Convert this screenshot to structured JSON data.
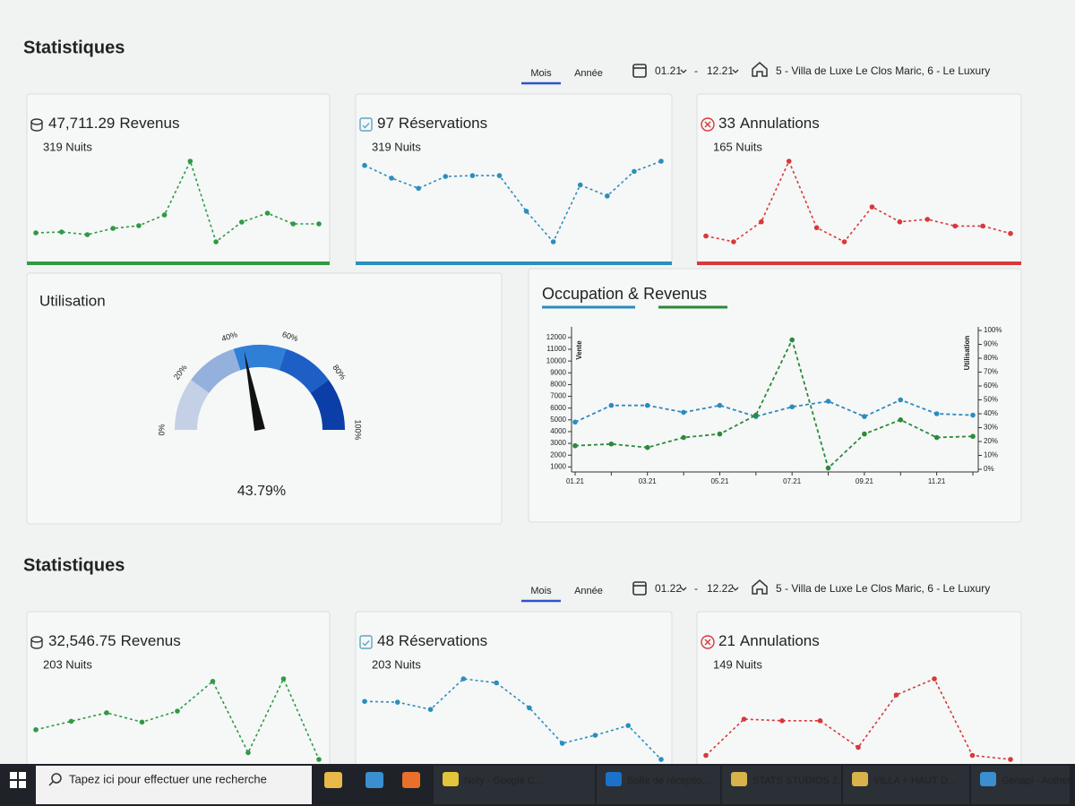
{
  "sections": [
    {
      "title": "Statistiques",
      "tabs": [
        "Mois",
        "Année"
      ],
      "date_from": "01.21",
      "date_sep": "-",
      "date_to": "12.21",
      "property": "5 - Villa de Luxe Le Clos Maric, 6 - Le Luxury",
      "cards": [
        {
          "amount": "47,711.29",
          "label": "Revenus",
          "nights": "319 Nuits",
          "color": "#2f9a44",
          "values": [
            15,
            16,
            13,
            20,
            23,
            35,
            95,
            5,
            27,
            37,
            25,
            25
          ]
        },
        {
          "amount": "97",
          "label": "Réservations",
          "nights": "319 Nuits",
          "color": "#2a8fbd",
          "values": [
            95,
            80,
            68,
            82,
            83,
            83,
            41,
            5,
            72,
            59,
            88,
            100
          ]
        },
        {
          "amount": "33",
          "label": "Annulations",
          "nights": "165 Nuits",
          "color": "#d9383a",
          "values": [
            10,
            3,
            27,
            100,
            20,
            3,
            45,
            27,
            30,
            22,
            22,
            13
          ]
        }
      ],
      "utilisation": {
        "title": "Utilisation",
        "value": 43.79,
        "value_label": "43.79%",
        "ticks": [
          {
            "value": 0,
            "label": "0%"
          },
          {
            "value": 20,
            "label": "20%"
          },
          {
            "value": 40,
            "label": "40%"
          },
          {
            "value": 60,
            "label": "60%"
          },
          {
            "value": 80,
            "label": "80%"
          },
          {
            "value": 100,
            "label": "100%"
          }
        ],
        "band_colors": [
          "#c4d0e6",
          "#94b1de",
          "#2f7fd6",
          "#1e5fc6",
          "#0b3ea6"
        ]
      },
      "occupation": {
        "title_sep": "&",
        "ylabel": "Vente",
        "y2label": "Utilisation",
        "categories": [
          "01.21",
          null,
          "03.21",
          null,
          "05.21",
          null,
          "07.21",
          null,
          "09.21",
          null,
          "11.21",
          null
        ],
        "ylim": [
          800,
          12600
        ],
        "yticks": [
          1000,
          2000,
          3000,
          4000,
          5000,
          6000,
          7000,
          8000,
          9000,
          10000,
          11000,
          12000
        ],
        "y2lim": [
          0,
          100
        ],
        "y2ticks": [
          {
            "value": 0,
            "label": "0%"
          },
          {
            "value": 10,
            "label": "10%"
          },
          {
            "value": 20,
            "label": "20%"
          },
          {
            "value": 30,
            "label": "30%"
          },
          {
            "value": 40,
            "label": "40%"
          },
          {
            "value": 50,
            "label": "50%"
          },
          {
            "value": 60,
            "label": "60%"
          },
          {
            "value": 70,
            "label": "70%"
          },
          {
            "value": 80,
            "label": "80%"
          },
          {
            "value": 90,
            "label": "90%"
          },
          {
            "value": 100,
            "label": "100%"
          }
        ],
        "series": [
          {
            "name": "Occupation",
            "color": "#2c8bbf",
            "axis": "y2",
            "values": [
              34,
              46,
              46,
              41,
              46,
              38,
              45,
              49,
              38,
              50,
              40,
              39
            ]
          },
          {
            "name": "Revenus",
            "color": "#2a8a3a",
            "values": [
              2800,
              2950,
              2650,
              3500,
              3800,
              5400,
              11800,
              900,
              3800,
              5000,
              3500,
              3600
            ]
          }
        ]
      }
    },
    {
      "title": "Statistiques",
      "tabs": [
        "Mois",
        "Année"
      ],
      "date_from": "01.22",
      "date_sep": "-",
      "date_to": "12.22",
      "property": "5 - Villa de Luxe Le Clos Maric, 6 - Le Luxury",
      "cards": [
        {
          "amount": "32,546.75",
          "label": "Revenus",
          "nights": "203 Nuits",
          "color": "#2f9a44",
          "values": [
            35,
            45,
            55,
            44,
            57,
            92,
            8,
            95,
            0
          ]
        },
        {
          "amount": "48",
          "label": "Réservations",
          "nights": "203 Nuits",
          "color": "#2a8fbd",
          "values": [
            72,
            71,
            62,
            100,
            95,
            64,
            20,
            30,
            42,
            0
          ]
        },
        {
          "amount": "21",
          "label": "Annulations",
          "nights": "149 Nuits",
          "color": "#d9383a",
          "values": [
            5,
            50,
            48,
            48,
            15,
            80,
            100,
            5,
            0
          ]
        }
      ]
    }
  ],
  "taskbar": {
    "search": "Tapez ici pour effectuer une recherche",
    "apps": [
      "Noty - Google C...",
      "Boîte de réceptio...",
      "STATS STUDIOS 2...",
      "VILLA + HAUT D...",
      "Genapi - Authen..."
    ]
  }
}
